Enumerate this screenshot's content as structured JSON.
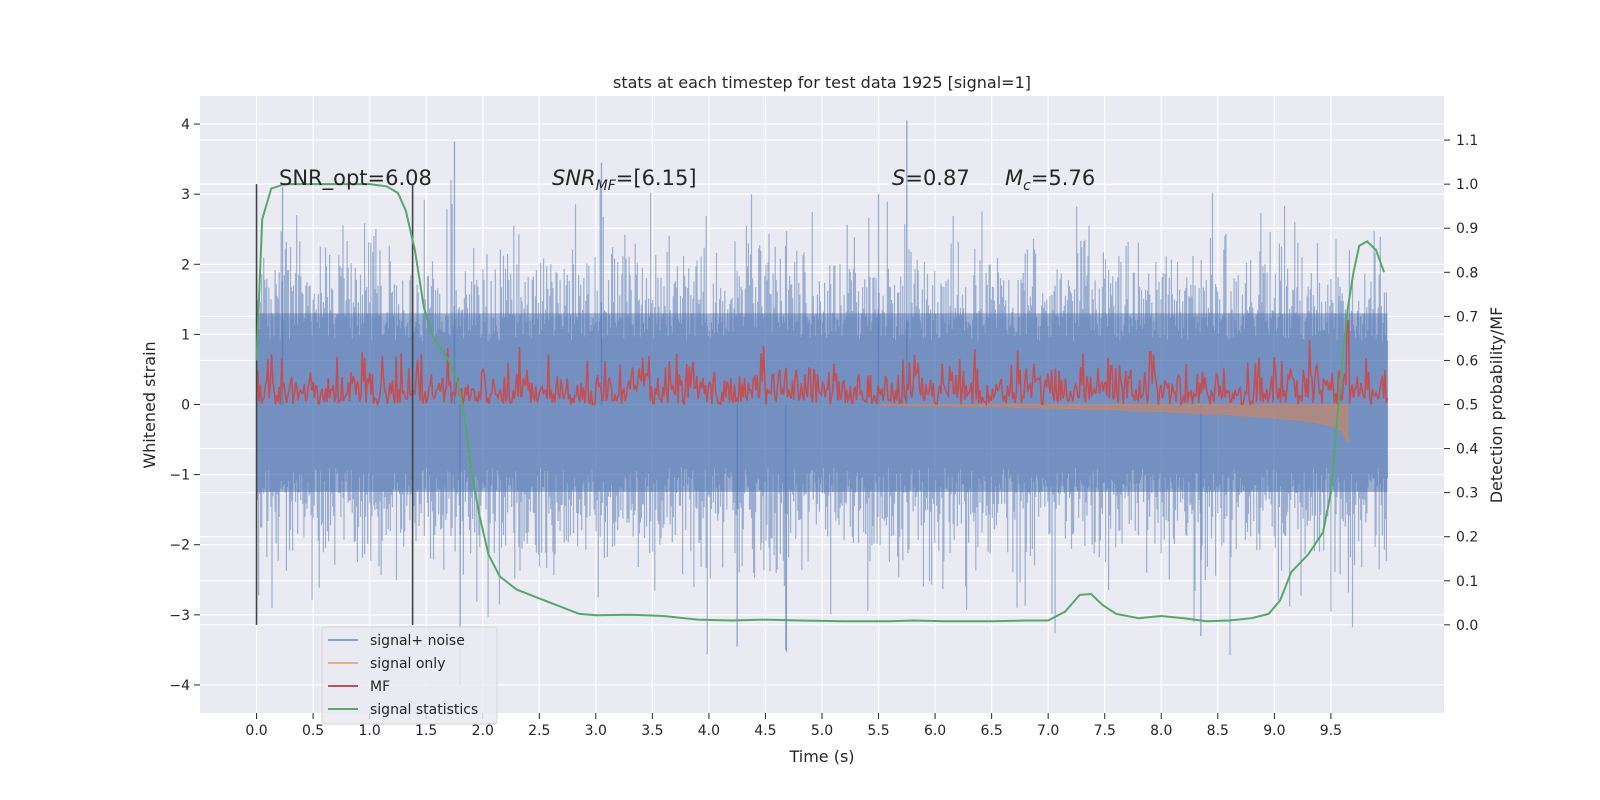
{
  "chart_data": {
    "type": "line",
    "title": "stats at each timestep for test data 1925 [signal=1]",
    "xlabel": "Time (s)",
    "ylabel": "Whitened strain",
    "y2label": "Detection probability/MF",
    "xlim": [
      -0.5,
      10.5
    ],
    "ylim": [
      -4.4,
      4.4
    ],
    "y2lim": [
      -0.2,
      1.2
    ],
    "xticks": [
      "0.0",
      "0.5",
      "1.0",
      "1.5",
      "2.0",
      "2.5",
      "3.0",
      "3.5",
      "4.0",
      "4.5",
      "5.0",
      "5.5",
      "6.0",
      "6.5",
      "7.0",
      "7.5",
      "8.0",
      "8.5",
      "9.0",
      "9.5"
    ],
    "yticks": [
      "4",
      "3",
      "2",
      "1",
      "0",
      "−1",
      "−2",
      "−3",
      "−4"
    ],
    "y2ticks": [
      "1.1",
      "1.0",
      "0.9",
      "0.8",
      "0.7",
      "0.6",
      "0.5",
      "0.4",
      "0.3",
      "0.2",
      "0.1",
      "0.0"
    ],
    "grid": true,
    "legend_position": "lower-left",
    "annotations": {
      "snr_opt": "SNR_opt=6.08",
      "snr_mf_main": "SNR",
      "snr_mf_sub": "MF",
      "snr_mf_value": "=[6.15]",
      "s_main": "S",
      "s_value": "=0.87",
      "mc_main": "M",
      "mc_sub": "c",
      "mc_value": "=5.76"
    },
    "vertical_markers": [
      0.0,
      1.38
    ],
    "series": [
      {
        "name": "signal+ noise",
        "color": "#4c72b0",
        "axis": "left",
        "t_range": [
          0.0,
          10.0
        ],
        "band_typical": [
          -1.25,
          1.3
        ],
        "peaks_high": [
          [
            0.23,
            3.1
          ],
          [
            1.75,
            3.75
          ],
          [
            3.05,
            3.45
          ],
          [
            5.5,
            3.0
          ],
          [
            5.75,
            4.05
          ]
        ],
        "peaks_low": [
          [
            1.8,
            -4.0
          ],
          [
            4.25,
            -3.45
          ],
          [
            4.68,
            -3.5
          ],
          [
            8.35,
            -3.3
          ]
        ]
      },
      {
        "name": "signal only",
        "color": "#dd8452",
        "axis": "left",
        "points": [
          [
            5.5,
            -0.01
          ],
          [
            6.5,
            -0.03
          ],
          [
            7.0,
            -0.05
          ],
          [
            7.5,
            -0.07
          ],
          [
            8.0,
            -0.1
          ],
          [
            8.5,
            -0.14
          ],
          [
            9.0,
            -0.19
          ],
          [
            9.3,
            -0.24
          ],
          [
            9.5,
            -0.3
          ],
          [
            9.6,
            -0.38
          ],
          [
            9.65,
            -0.55
          ]
        ]
      },
      {
        "name": "MF",
        "color": "#c44e52",
        "axis": "right",
        "baseline": 0.5,
        "typical_max": 0.58,
        "peaks": [
          [
            7.9,
            0.62
          ],
          [
            9.65,
            0.69
          ]
        ]
      },
      {
        "name": "signal statistics",
        "color": "#55a868",
        "axis": "right",
        "points": [
          [
            0.0,
            0.6
          ],
          [
            0.05,
            0.92
          ],
          [
            0.13,
            0.99
          ],
          [
            0.25,
            1.0
          ],
          [
            0.5,
            1.0
          ],
          [
            0.8,
            1.0
          ],
          [
            1.0,
            1.0
          ],
          [
            1.15,
            0.995
          ],
          [
            1.25,
            0.98
          ],
          [
            1.32,
            0.94
          ],
          [
            1.4,
            0.85
          ],
          [
            1.48,
            0.72
          ],
          [
            1.55,
            0.66
          ],
          [
            1.62,
            0.63
          ],
          [
            1.7,
            0.6
          ],
          [
            1.78,
            0.55
          ],
          [
            1.84,
            0.47
          ],
          [
            1.9,
            0.35
          ],
          [
            1.97,
            0.25
          ],
          [
            2.05,
            0.16
          ],
          [
            2.15,
            0.11
          ],
          [
            2.3,
            0.08
          ],
          [
            2.5,
            0.06
          ],
          [
            2.7,
            0.04
          ],
          [
            2.85,
            0.025
          ],
          [
            3.0,
            0.022
          ],
          [
            3.3,
            0.023
          ],
          [
            3.6,
            0.02
          ],
          [
            3.9,
            0.012
          ],
          [
            4.2,
            0.01
          ],
          [
            4.5,
            0.012
          ],
          [
            4.8,
            0.01
          ],
          [
            5.2,
            0.008
          ],
          [
            5.6,
            0.008
          ],
          [
            5.8,
            0.01
          ],
          [
            6.1,
            0.008
          ],
          [
            6.5,
            0.008
          ],
          [
            6.8,
            0.01
          ],
          [
            7.0,
            0.01
          ],
          [
            7.15,
            0.03
          ],
          [
            7.28,
            0.068
          ],
          [
            7.38,
            0.07
          ],
          [
            7.48,
            0.045
          ],
          [
            7.6,
            0.025
          ],
          [
            7.8,
            0.015
          ],
          [
            8.0,
            0.02
          ],
          [
            8.2,
            0.015
          ],
          [
            8.4,
            0.008
          ],
          [
            8.6,
            0.01
          ],
          [
            8.8,
            0.015
          ],
          [
            8.95,
            0.025
          ],
          [
            9.05,
            0.055
          ],
          [
            9.15,
            0.12
          ],
          [
            9.3,
            0.16
          ],
          [
            9.43,
            0.21
          ],
          [
            9.5,
            0.3
          ],
          [
            9.55,
            0.45
          ],
          [
            9.6,
            0.6
          ],
          [
            9.65,
            0.72
          ],
          [
            9.7,
            0.8
          ],
          [
            9.75,
            0.86
          ],
          [
            9.82,
            0.87
          ],
          [
            9.9,
            0.85
          ],
          [
            9.97,
            0.8
          ]
        ]
      }
    ]
  }
}
